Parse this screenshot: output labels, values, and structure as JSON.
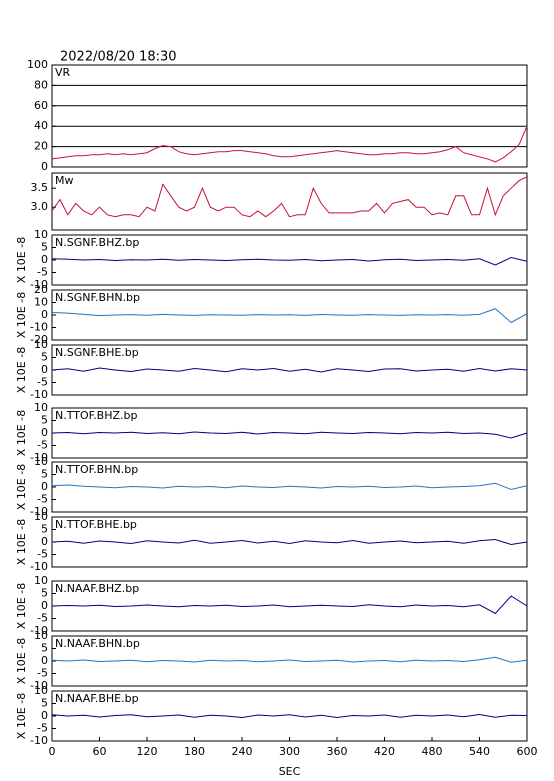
{
  "chart_data": [
    {
      "type": "line",
      "title": "2022/08/20 18:30",
      "label": "VR",
      "grid": true,
      "xlim": [
        0,
        600
      ],
      "ylim": [
        0,
        100
      ],
      "yticks": [
        0,
        20,
        40,
        60,
        80,
        100
      ],
      "x": [
        0,
        10,
        20,
        30,
        40,
        50,
        60,
        70,
        80,
        90,
        100,
        110,
        120,
        130,
        140,
        150,
        160,
        170,
        180,
        190,
        200,
        210,
        220,
        230,
        240,
        250,
        260,
        270,
        280,
        290,
        300,
        310,
        320,
        330,
        340,
        350,
        360,
        370,
        380,
        390,
        400,
        410,
        420,
        430,
        440,
        450,
        460,
        470,
        480,
        490,
        500,
        510,
        520,
        530,
        540,
        550,
        560,
        570,
        580,
        590,
        600
      ],
      "series": [
        {
          "color": "#d0103a",
          "values": [
            8,
            9,
            10,
            11,
            11,
            12,
            12,
            13,
            12,
            13,
            12,
            13,
            14,
            18,
            21,
            20,
            15,
            13,
            12,
            13,
            14,
            15,
            15,
            16,
            16,
            15,
            14,
            13,
            11,
            10,
            10,
            11,
            12,
            13,
            14,
            15,
            16,
            15,
            14,
            13,
            12,
            12,
            13,
            13,
            14,
            14,
            13,
            13,
            14,
            15,
            17,
            20,
            14,
            12,
            10,
            8,
            5,
            9,
            15,
            22,
            40
          ]
        }
      ]
    },
    {
      "type": "line",
      "label": "Mw",
      "xlim": [
        0,
        600
      ],
      "ylim": [
        2.4,
        3.9
      ],
      "yticks": [
        {
          "value": 3,
          "label": "3.0"
        },
        3.5
      ],
      "x": [
        0,
        10,
        20,
        30,
        40,
        50,
        60,
        70,
        80,
        90,
        100,
        110,
        120,
        130,
        140,
        150,
        160,
        170,
        180,
        190,
        200,
        210,
        220,
        230,
        240,
        250,
        260,
        270,
        280,
        290,
        300,
        310,
        320,
        330,
        340,
        350,
        360,
        370,
        380,
        390,
        400,
        410,
        420,
        430,
        440,
        450,
        460,
        470,
        480,
        490,
        500,
        510,
        520,
        530,
        540,
        550,
        560,
        570,
        580,
        590,
        600
      ],
      "series": [
        {
          "color": "#c8102e",
          "values": [
            2.9,
            3.2,
            2.8,
            3.1,
            2.9,
            2.8,
            3.0,
            2.8,
            2.75,
            2.8,
            2.8,
            2.75,
            3.0,
            2.9,
            3.6,
            3.3,
            3.0,
            2.9,
            3.0,
            3.5,
            3.0,
            2.9,
            3.0,
            3.0,
            2.8,
            2.75,
            2.9,
            2.75,
            2.9,
            3.1,
            2.75,
            2.8,
            2.8,
            3.5,
            3.1,
            2.85,
            2.85,
            2.85,
            2.85,
            2.9,
            2.9,
            3.1,
            2.85,
            3.1,
            3.15,
            3.2,
            3.0,
            3.0,
            2.8,
            2.85,
            2.8,
            3.3,
            3.3,
            2.8,
            2.8,
            3.5,
            2.8,
            3.3,
            3.5,
            3.7,
            3.8
          ]
        }
      ]
    },
    {
      "type": "line",
      "label": "N.SGNF.BHZ.bp",
      "ylabel": "X 10E -8",
      "xlim": [
        0,
        600
      ],
      "ylim": [
        -10,
        10
      ],
      "yticks": [
        -10,
        -5,
        0,
        5,
        10
      ],
      "x": [
        0,
        20,
        40,
        60,
        80,
        100,
        120,
        140,
        160,
        180,
        200,
        220,
        240,
        260,
        280,
        300,
        320,
        340,
        360,
        380,
        400,
        420,
        440,
        460,
        480,
        500,
        520,
        540,
        560,
        580,
        600
      ],
      "series": [
        {
          "color": "#000080",
          "values": [
            0.5,
            0.3,
            0,
            0.2,
            -0.2,
            0.1,
            0,
            0.3,
            -0.1,
            0.2,
            0,
            -0.2,
            0.1,
            0.3,
            0,
            -0.1,
            0.2,
            -0.3,
            0,
            0.2,
            -0.4,
            0.1,
            0.3,
            -0.2,
            0,
            0.2,
            -0.1,
            0.5,
            -2,
            1,
            -0.5
          ]
        }
      ]
    },
    {
      "type": "line",
      "label": "N.SGNF.BHN.bp",
      "ylabel": "X 10E -8",
      "xlim": [
        0,
        600
      ],
      "ylim": [
        -20,
        20
      ],
      "yticks": [
        -20,
        -10,
        0,
        10,
        20
      ],
      "x": [
        0,
        20,
        40,
        60,
        80,
        100,
        120,
        140,
        160,
        180,
        200,
        220,
        240,
        260,
        280,
        300,
        320,
        340,
        360,
        380,
        400,
        420,
        440,
        460,
        480,
        500,
        520,
        540,
        560,
        580,
        600
      ],
      "series": [
        {
          "color": "#1e78c8",
          "values": [
            2,
            1.5,
            0.5,
            -0.5,
            0,
            0.3,
            -0.2,
            0.5,
            0,
            -0.3,
            0.2,
            0,
            -0.2,
            0.3,
            0,
            0.2,
            -0.3,
            0.4,
            0,
            -0.2,
            0.3,
            0,
            -0.3,
            0.2,
            0,
            0.3,
            -0.2,
            0.5,
            5,
            -6,
            1
          ]
        }
      ]
    },
    {
      "type": "line",
      "label": "N.SGNF.BHE.bp",
      "ylabel": "X 10E -8",
      "xlim": [
        0,
        600
      ],
      "ylim": [
        -10,
        10
      ],
      "yticks": [
        -10,
        -5,
        0,
        5,
        10
      ],
      "x": [
        0,
        20,
        40,
        60,
        80,
        100,
        120,
        140,
        160,
        180,
        200,
        220,
        240,
        260,
        280,
        300,
        320,
        340,
        360,
        380,
        400,
        420,
        440,
        460,
        480,
        500,
        520,
        540,
        560,
        580,
        600
      ],
      "series": [
        {
          "color": "#000080",
          "values": [
            0,
            0.5,
            -0.5,
            0.8,
            0,
            -0.6,
            0.4,
            0,
            -0.5,
            0.6,
            0,
            -0.7,
            0.5,
            0,
            0.6,
            -0.5,
            0.3,
            -0.8,
            0.5,
            0,
            -0.6,
            0.4,
            0.5,
            -0.4,
            0,
            0.3,
            -0.5,
            0.6,
            -0.4,
            0.5,
            0
          ]
        }
      ]
    },
    {
      "type": "line",
      "label": "N.TTOF.BHZ.bp",
      "ylabel": "X 10E -8",
      "xlim": [
        0,
        600
      ],
      "ylim": [
        -10,
        10
      ],
      "yticks": [
        -10,
        -5,
        0,
        5,
        10
      ],
      "x": [
        0,
        20,
        40,
        60,
        80,
        100,
        120,
        140,
        160,
        180,
        200,
        220,
        240,
        260,
        280,
        300,
        320,
        340,
        360,
        380,
        400,
        420,
        440,
        460,
        480,
        500,
        520,
        540,
        560,
        580,
        600
      ],
      "series": [
        {
          "color": "#000080",
          "values": [
            0,
            0.2,
            -0.3,
            0.2,
            0,
            0.3,
            -0.2,
            0.1,
            -0.3,
            0.4,
            0,
            -0.2,
            0.3,
            -0.4,
            0.2,
            0,
            -0.3,
            0.3,
            0,
            -0.2,
            0.2,
            0,
            -0.3,
            0.2,
            0,
            0.3,
            -0.2,
            0,
            -0.5,
            -2,
            0
          ]
        }
      ]
    },
    {
      "type": "line",
      "label": "N.TTOF.BHN.bp",
      "ylabel": "X 10E -8",
      "xlim": [
        0,
        600
      ],
      "ylim": [
        -10,
        10
      ],
      "yticks": [
        -10,
        -5,
        0,
        5,
        10
      ],
      "x": [
        0,
        20,
        40,
        60,
        80,
        100,
        120,
        140,
        160,
        180,
        200,
        220,
        240,
        260,
        280,
        300,
        320,
        340,
        360,
        380,
        400,
        420,
        440,
        460,
        480,
        500,
        520,
        540,
        560,
        580,
        600
      ],
      "series": [
        {
          "color": "#1e78c8",
          "values": [
            0.5,
            0.8,
            0.3,
            0,
            -0.3,
            0.2,
            0,
            -0.4,
            0.3,
            0,
            0.2,
            -0.3,
            0.4,
            0,
            -0.2,
            0.3,
            0,
            -0.4,
            0.2,
            0,
            0.3,
            -0.2,
            0,
            0.4,
            -0.3,
            0,
            0.2,
            0.5,
            1.5,
            -1,
            0.5
          ]
        }
      ]
    },
    {
      "type": "line",
      "label": "N.TTOF.BHE.bp",
      "ylabel": "X 10E -8",
      "xlim": [
        0,
        600
      ],
      "ylim": [
        -10,
        10
      ],
      "yticks": [
        -10,
        -5,
        0,
        5,
        10
      ],
      "x": [
        0,
        20,
        40,
        60,
        80,
        100,
        120,
        140,
        160,
        180,
        200,
        220,
        240,
        260,
        280,
        300,
        320,
        340,
        360,
        380,
        400,
        420,
        440,
        460,
        480,
        500,
        520,
        540,
        560,
        580,
        600
      ],
      "series": [
        {
          "color": "#000080",
          "values": [
            0,
            0.3,
            -0.5,
            0.4,
            0,
            -0.6,
            0.5,
            0,
            -0.4,
            0.7,
            -0.5,
            0,
            0.6,
            -0.4,
            0.3,
            -0.6,
            0.5,
            0,
            -0.3,
            0.6,
            -0.5,
            0,
            0.4,
            -0.3,
            0,
            0.3,
            -0.5,
            0.5,
            1,
            -1,
            0
          ]
        }
      ]
    },
    {
      "type": "line",
      "label": "N.NAAF.BHZ.bp",
      "ylabel": "X 10E -8",
      "xlim": [
        0,
        600
      ],
      "ylim": [
        -10,
        10
      ],
      "yticks": [
        -10,
        -5,
        0,
        5,
        10
      ],
      "x": [
        0,
        20,
        40,
        60,
        80,
        100,
        120,
        140,
        160,
        180,
        200,
        220,
        240,
        260,
        280,
        300,
        320,
        340,
        360,
        380,
        400,
        420,
        440,
        460,
        480,
        500,
        520,
        540,
        560,
        580,
        600
      ],
      "series": [
        {
          "color": "#000080",
          "values": [
            0,
            0.2,
            0,
            0.3,
            -0.2,
            0,
            0.4,
            0,
            -0.3,
            0.2,
            0,
            0.3,
            -0.2,
            0,
            0.4,
            -0.3,
            0,
            0.3,
            0,
            -0.2,
            0.5,
            0,
            -0.3,
            0.4,
            0,
            0.2,
            -0.3,
            0.5,
            -3,
            4,
            0
          ]
        }
      ]
    },
    {
      "type": "line",
      "label": "N.NAAF.BHN.bp",
      "ylabel": "X 10E -8",
      "xlim": [
        0,
        600
      ],
      "ylim": [
        -10,
        10
      ],
      "yticks": [
        -10,
        -5,
        0,
        5,
        10
      ],
      "x": [
        0,
        20,
        40,
        60,
        80,
        100,
        120,
        140,
        160,
        180,
        200,
        220,
        240,
        260,
        280,
        300,
        320,
        340,
        360,
        380,
        400,
        420,
        440,
        460,
        480,
        500,
        520,
        540,
        560,
        580,
        600
      ],
      "series": [
        {
          "color": "#1e78c8",
          "values": [
            0.3,
            0,
            0.4,
            -0.2,
            0,
            0.3,
            -0.3,
            0.2,
            0,
            -0.4,
            0.3,
            0,
            0.2,
            -0.3,
            0,
            0.4,
            -0.2,
            0,
            0.3,
            -0.4,
            0,
            0.2,
            -0.3,
            0.3,
            0,
            0.2,
            -0.2,
            0.5,
            1.5,
            -0.5,
            0.3
          ]
        }
      ]
    },
    {
      "type": "line",
      "label": "N.NAAF.BHE.bp",
      "ylabel": "X 10E -8",
      "xlabel": "SEC",
      "xlim": [
        0,
        600
      ],
      "xticks": [
        0,
        60,
        120,
        180,
        240,
        300,
        360,
        420,
        480,
        540,
        600
      ],
      "ylim": [
        -10,
        10
      ],
      "yticks": [
        -10,
        -5,
        0,
        5,
        10
      ],
      "x": [
        0,
        20,
        40,
        60,
        80,
        100,
        120,
        140,
        160,
        180,
        200,
        220,
        240,
        260,
        280,
        300,
        320,
        340,
        360,
        380,
        400,
        420,
        440,
        460,
        480,
        500,
        520,
        540,
        560,
        580,
        600
      ],
      "series": [
        {
          "color": "#000080",
          "values": [
            0.5,
            0,
            0.3,
            -0.4,
            0.2,
            0.5,
            -0.3,
            0,
            0.4,
            -0.5,
            0.3,
            0,
            -0.6,
            0.4,
            0,
            0.5,
            -0.4,
            0.3,
            -0.6,
            0.2,
            0,
            0.4,
            -0.5,
            0.3,
            0,
            0.4,
            -0.3,
            0.6,
            -0.5,
            0.3,
            0.2
          ]
        }
      ]
    }
  ]
}
